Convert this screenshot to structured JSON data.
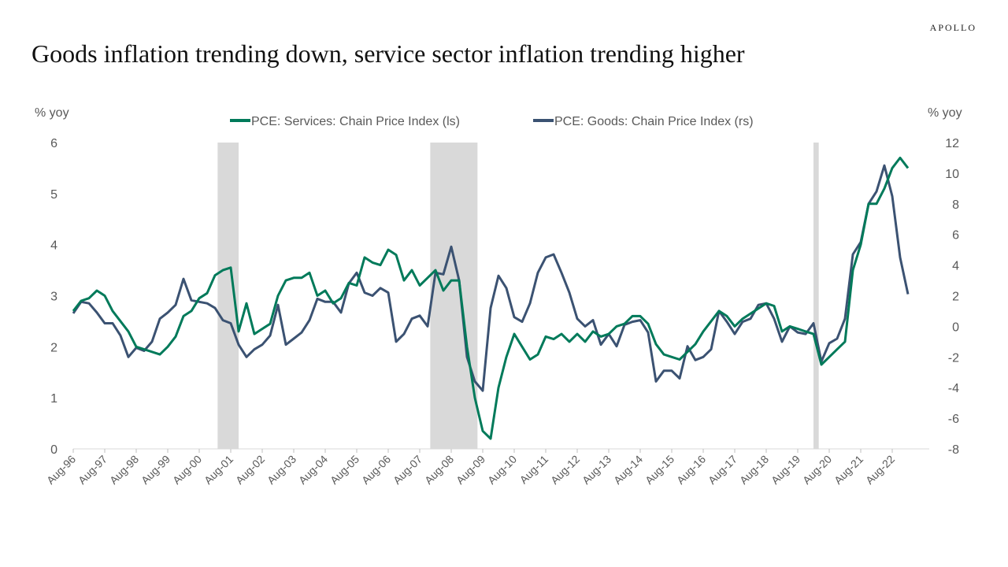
{
  "brand": "APOLLO",
  "title": "Goods inflation trending down, service sector inflation trending higher",
  "chart_data": {
    "type": "line",
    "title": "Goods inflation trending down, service sector inflation trending higher",
    "ylabel_left": "% yoy",
    "ylabel_right": "% yoy",
    "ylim_left": [
      0,
      6
    ],
    "ylim_right": [
      -8,
      12
    ],
    "yticks_left": [
      "0",
      "1",
      "2",
      "3",
      "4",
      "5",
      "6"
    ],
    "yticks_right": [
      "-8",
      "-6",
      "-4",
      "-2",
      "0",
      "2",
      "4",
      "6",
      "8",
      "10",
      "12"
    ],
    "xticks": [
      "Aug-96",
      "Aug-97",
      "Aug-98",
      "Aug-99",
      "Aug-00",
      "Aug-01",
      "Aug-02",
      "Aug-03",
      "Aug-04",
      "Aug-05",
      "Aug-06",
      "Aug-07",
      "Aug-08",
      "Aug-09",
      "Aug-10",
      "Aug-11",
      "Aug-12",
      "Aug-13",
      "Aug-14",
      "Aug-15",
      "Aug-16",
      "Aug-17",
      "Aug-18",
      "Aug-19",
      "Aug-20",
      "Aug-21",
      "Aug-22"
    ],
    "grid": false,
    "legend_position": "top",
    "recessions": [
      [
        "2001-03",
        "2001-11"
      ],
      [
        "2007-12",
        "2009-06"
      ],
      [
        "2020-02",
        "2020-04"
      ]
    ],
    "recession_color": "#d9d9d9",
    "start": "1996-08",
    "step_months": 3,
    "series": [
      {
        "name": "PCE: Services: Chain Price Index (ls)",
        "axis": "left",
        "color": "#007a5a",
        "values": [
          2.7,
          2.9,
          2.95,
          3.1,
          3.0,
          2.7,
          2.5,
          2.3,
          2.0,
          1.95,
          1.9,
          1.85,
          2.0,
          2.2,
          2.6,
          2.7,
          2.95,
          3.05,
          3.4,
          3.5,
          3.55,
          2.3,
          2.85,
          2.25,
          2.35,
          2.45,
          3.0,
          3.3,
          3.35,
          3.35,
          3.45,
          3.0,
          3.1,
          2.85,
          2.95,
          3.25,
          3.2,
          3.75,
          3.65,
          3.6,
          3.9,
          3.8,
          3.3,
          3.5,
          3.2,
          3.35,
          3.5,
          3.1,
          3.3,
          3.3,
          2.0,
          1.0,
          0.35,
          0.2,
          1.2,
          1.8,
          2.25,
          2.0,
          1.75,
          1.85,
          2.2,
          2.15,
          2.25,
          2.1,
          2.25,
          2.1,
          2.3,
          2.2,
          2.25,
          2.4,
          2.45,
          2.6,
          2.6,
          2.45,
          2.05,
          1.85,
          1.8,
          1.75,
          1.9,
          2.05,
          2.3,
          2.5,
          2.7,
          2.6,
          2.4,
          2.55,
          2.65,
          2.75,
          2.85,
          2.8,
          2.3,
          2.4,
          2.35,
          2.3,
          2.25,
          1.65,
          1.8,
          1.95,
          2.1,
          3.5,
          4.0,
          4.8,
          4.8,
          5.1,
          5.5,
          5.7,
          5.5
        ]
      },
      {
        "name": "PCE: Goods: Chain Price Index (rs)",
        "axis": "right",
        "color": "#3b5272",
        "values": [
          0.85,
          1.6,
          1.5,
          0.9,
          0.2,
          0.2,
          -0.6,
          -2.0,
          -1.4,
          -1.6,
          -1.0,
          0.5,
          0.9,
          1.4,
          3.1,
          1.7,
          1.6,
          1.5,
          1.2,
          0.4,
          0.2,
          -1.2,
          -2.0,
          -1.5,
          -1.2,
          -0.6,
          1.4,
          -1.2,
          -0.8,
          -0.4,
          0.4,
          1.8,
          1.6,
          1.6,
          0.9,
          2.8,
          3.5,
          2.2,
          2.0,
          2.5,
          2.2,
          -1.0,
          -0.5,
          0.5,
          0.7,
          0.0,
          3.5,
          3.4,
          5.2,
          3.0,
          -2.0,
          -3.6,
          -4.2,
          1.2,
          3.3,
          2.5,
          0.6,
          0.3,
          1.5,
          3.5,
          4.5,
          4.7,
          3.5,
          2.2,
          0.5,
          0.0,
          0.4,
          -1.2,
          -0.5,
          -1.3,
          0.1,
          0.3,
          0.4,
          -0.4,
          -3.6,
          -2.9,
          -2.9,
          -3.4,
          -1.3,
          -2.2,
          -2.0,
          -1.5,
          1.0,
          0.3,
          -0.5,
          0.3,
          0.5,
          1.4,
          1.5,
          0.5,
          -1.0,
          0.0,
          -0.4,
          -0.5,
          0.2,
          -2.3,
          -1.1,
          -0.8,
          0.5,
          4.7,
          5.5,
          8.0,
          8.8,
          10.5,
          8.5,
          4.5,
          2.1
        ]
      }
    ]
  }
}
